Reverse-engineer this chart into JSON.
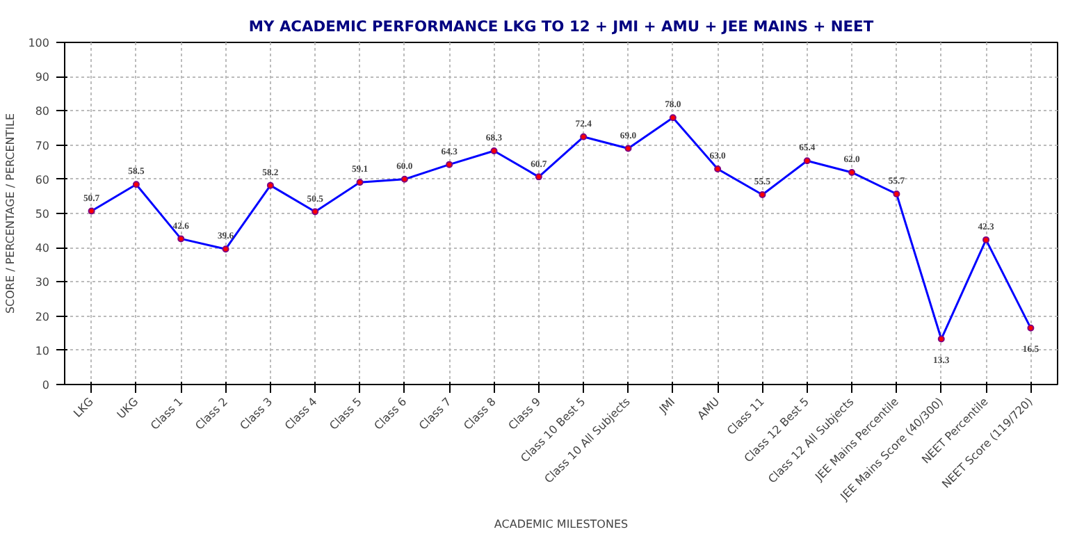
{
  "chart_data": {
    "type": "line",
    "title": "MY ACADEMIC PERFORMANCE LKG TO 12 + JMI + AMU + JEE MAINS + NEET",
    "xlabel": "ACADEMIC MILESTONES",
    "ylabel": "SCORE / PERCENTAGE / PERCENTILE",
    "categories": [
      "LKG",
      "UKG",
      "Class 1",
      "Class 2",
      "Class 3",
      "Class 4",
      "Class 5",
      "Class 6",
      "Class 7",
      "Class 8",
      "Class 9",
      "Class 10 Best 5",
      "Class 10 All Subjects",
      "JMI",
      "AMU",
      "Class 11",
      "Class 12 Best 5",
      "Class 12 All Subjects",
      "JEE Mains Percentile",
      "JEE Mains Score (40/300)",
      "NEET Percentile",
      "NEET Score (119/720)"
    ],
    "series": [
      {
        "color": "#0000ff",
        "values": [
          50.7,
          58.5,
          42.6,
          39.6,
          58.2,
          50.5,
          59.1,
          60.0,
          64.3,
          68.3,
          60.7,
          72.4,
          69.0,
          78.0,
          63.0,
          55.5,
          65.4,
          62.0,
          55.7,
          13.3,
          42.3,
          16.5
        ],
        "value_labels": [
          "50.7",
          "58.5",
          "42.6",
          "39.6",
          "58.2",
          "50.5",
          "59.1",
          "60.0",
          "64.3",
          "68.3",
          "60.7",
          "72.4",
          "69.0",
          "78.0",
          "63.0",
          "55.5",
          "65.4",
          "62.0",
          "55.7",
          "13.3",
          "42.3",
          "16.5"
        ]
      }
    ],
    "ylim": [
      0,
      100
    ],
    "yticks": [
      0,
      10,
      20,
      30,
      40,
      50,
      60,
      70,
      80,
      90,
      100
    ],
    "grid": true,
    "marker": "circle",
    "line_style": "solid"
  }
}
